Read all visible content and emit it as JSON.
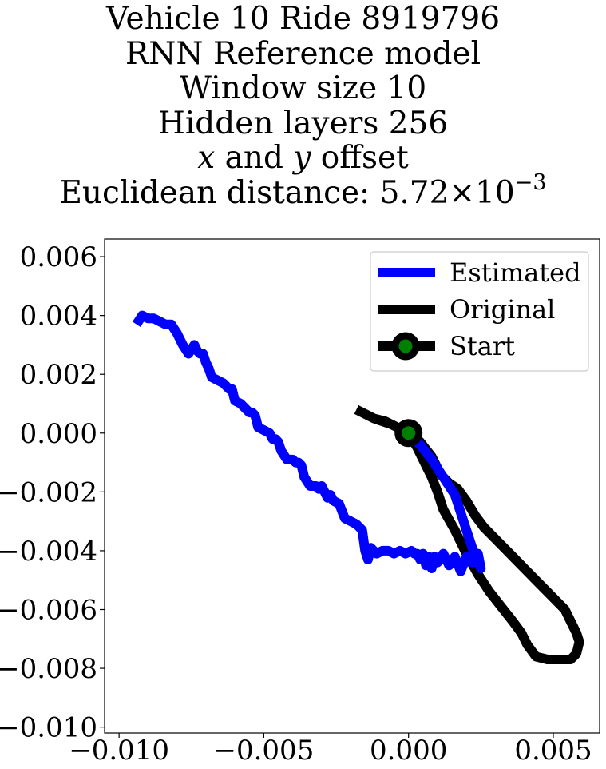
{
  "chart_data": {
    "type": "line",
    "title_lines": [
      "Vehicle 10 Ride 8919796",
      "RNN Reference model",
      "Window size 10",
      "Hidden layers 256"
    ],
    "offset_line": {
      "x": "x",
      "and": " and ",
      "y": "y",
      "rest": " offset"
    },
    "distance_line": {
      "prefix": "Euclidean distance: 5.72×10",
      "exponent": "−3"
    },
    "xlabel": "",
    "ylabel": "",
    "xlim": [
      -0.0105,
      0.0066
    ],
    "ylim": [
      -0.0102,
      0.0066
    ],
    "xticks": [
      -0.01,
      -0.005,
      0.0,
      0.005
    ],
    "xtick_labels": [
      "−0.010",
      "−0.005",
      "0.000",
      "0.005"
    ],
    "yticks": [
      0.006,
      0.004,
      0.002,
      0.0,
      -0.002,
      -0.004,
      -0.006,
      -0.008,
      -0.01
    ],
    "ytick_labels": [
      "0.006",
      "0.004",
      "0.002",
      "0.000",
      "−0.002",
      "−0.004",
      "−0.006",
      "−0.008",
      "−0.010"
    ],
    "grid": false,
    "legend_position": "top-right",
    "series": [
      {
        "name": "Estimated",
        "color": "#0000ff",
        "x": [
          0.0,
          0.0004,
          0.0008,
          0.0012,
          0.0016,
          0.0018,
          0.002,
          0.0022,
          0.0024,
          0.0025,
          0.0024,
          0.0022,
          0.002,
          0.0018,
          0.0016,
          0.0014,
          0.0012,
          0.001,
          0.0009,
          0.0008,
          0.0007,
          0.0006,
          0.0005,
          0.0004,
          0.0003,
          0.0002,
          0.0001,
          -0.0001,
          -0.0003,
          -0.0005,
          -0.0007,
          -0.0009,
          -0.0011,
          -0.0013,
          -0.0014,
          -0.0015,
          -0.0016,
          -0.0017,
          -0.0018,
          -0.002,
          -0.0022,
          -0.0024,
          -0.0026,
          -0.0027,
          -0.0028,
          -0.0029,
          -0.003,
          -0.0031,
          -0.0032,
          -0.0034,
          -0.0036,
          -0.0037,
          -0.0038,
          -0.0039,
          -0.004,
          -0.0042,
          -0.0044,
          -0.0045,
          -0.0046,
          -0.0047,
          -0.0048,
          -0.005,
          -0.0052,
          -0.0053,
          -0.0054,
          -0.0055,
          -0.0056,
          -0.0058,
          -0.006,
          -0.0061,
          -0.0062,
          -0.0063,
          -0.0064,
          -0.0066,
          -0.0068,
          -0.0069,
          -0.007,
          -0.0071,
          -0.0072,
          -0.0073,
          -0.0074,
          -0.0076,
          -0.0078,
          -0.008,
          -0.0082,
          -0.0084,
          -0.0086,
          -0.0088,
          -0.009,
          -0.0092,
          -0.0094
        ],
        "y": [
          0.0,
          -0.0004,
          -0.0009,
          -0.0015,
          -0.0021,
          -0.0027,
          -0.0033,
          -0.0039,
          -0.0044,
          -0.0046,
          -0.0041,
          -0.0044,
          -0.0042,
          -0.0047,
          -0.0042,
          -0.0045,
          -0.0041,
          -0.0044,
          -0.0042,
          -0.0046,
          -0.0042,
          -0.0045,
          -0.0041,
          -0.0043,
          -0.0041,
          -0.0041,
          -0.004,
          -0.0041,
          -0.004,
          -0.0041,
          -0.004,
          -0.004,
          -0.0041,
          -0.0039,
          -0.0043,
          -0.004,
          -0.0033,
          -0.0032,
          -0.0031,
          -0.003,
          -0.0029,
          -0.0024,
          -0.0023,
          -0.0021,
          -0.0022,
          -0.002,
          -0.0018,
          -0.0019,
          -0.0018,
          -0.0018,
          -0.0015,
          -0.0011,
          -0.001,
          -0.001,
          -0.0009,
          -0.0009,
          -0.0006,
          -0.0003,
          -0.0002,
          -0.0002,
          0.0,
          0.0001,
          0.0002,
          0.0006,
          0.0007,
          0.0007,
          0.0008,
          0.001,
          0.0011,
          0.0015,
          0.0015,
          0.0016,
          0.0017,
          0.0018,
          0.0019,
          0.0022,
          0.0024,
          0.0027,
          0.0027,
          0.0028,
          0.003,
          0.0027,
          0.003,
          0.0034,
          0.0037,
          0.0037,
          0.0038,
          0.0039,
          0.0039,
          0.004,
          0.0037
        ]
      },
      {
        "name": "Original",
        "color": "#000000",
        "x": [
          -0.0018,
          -0.0012,
          -0.0006,
          0.0,
          0.0004,
          0.0008,
          0.0011,
          0.0014,
          0.0017,
          0.002,
          0.0023,
          0.0026,
          0.003,
          0.0034,
          0.0038,
          0.0042,
          0.0046,
          0.005,
          0.0054,
          0.0056,
          0.0058,
          0.0059,
          0.0058,
          0.0056,
          0.0052,
          0.0048,
          0.0044,
          0.0041,
          0.0039,
          0.0036,
          0.0032,
          0.0028,
          0.0024,
          0.002,
          0.0016,
          0.0012,
          0.001,
          0.0008,
          0.0005,
          0.0003,
          0.0,
          -0.0004,
          -0.0008,
          -0.0012,
          -0.0016,
          -0.0018
        ],
        "y": [
          0.0008,
          0.0005,
          0.0003,
          0.0,
          -0.0003,
          -0.0008,
          -0.0014,
          -0.0017,
          -0.0019,
          -0.0023,
          -0.0028,
          -0.0032,
          -0.0036,
          -0.004,
          -0.0044,
          -0.0048,
          -0.0052,
          -0.0056,
          -0.006,
          -0.0064,
          -0.0068,
          -0.0071,
          -0.0075,
          -0.0077,
          -0.0077,
          -0.0077,
          -0.0076,
          -0.0072,
          -0.0068,
          -0.0064,
          -0.0059,
          -0.0054,
          -0.0048,
          -0.0041,
          -0.0033,
          -0.0026,
          -0.002,
          -0.0015,
          -0.0009,
          -0.0005,
          0.0,
          0.0002,
          0.0004,
          0.0005,
          0.0007,
          0.0008
        ]
      }
    ],
    "start": {
      "name": "Start",
      "x": 0.0,
      "y": 0.0,
      "marker_face": "#008000",
      "marker_edge": "#000000"
    }
  }
}
